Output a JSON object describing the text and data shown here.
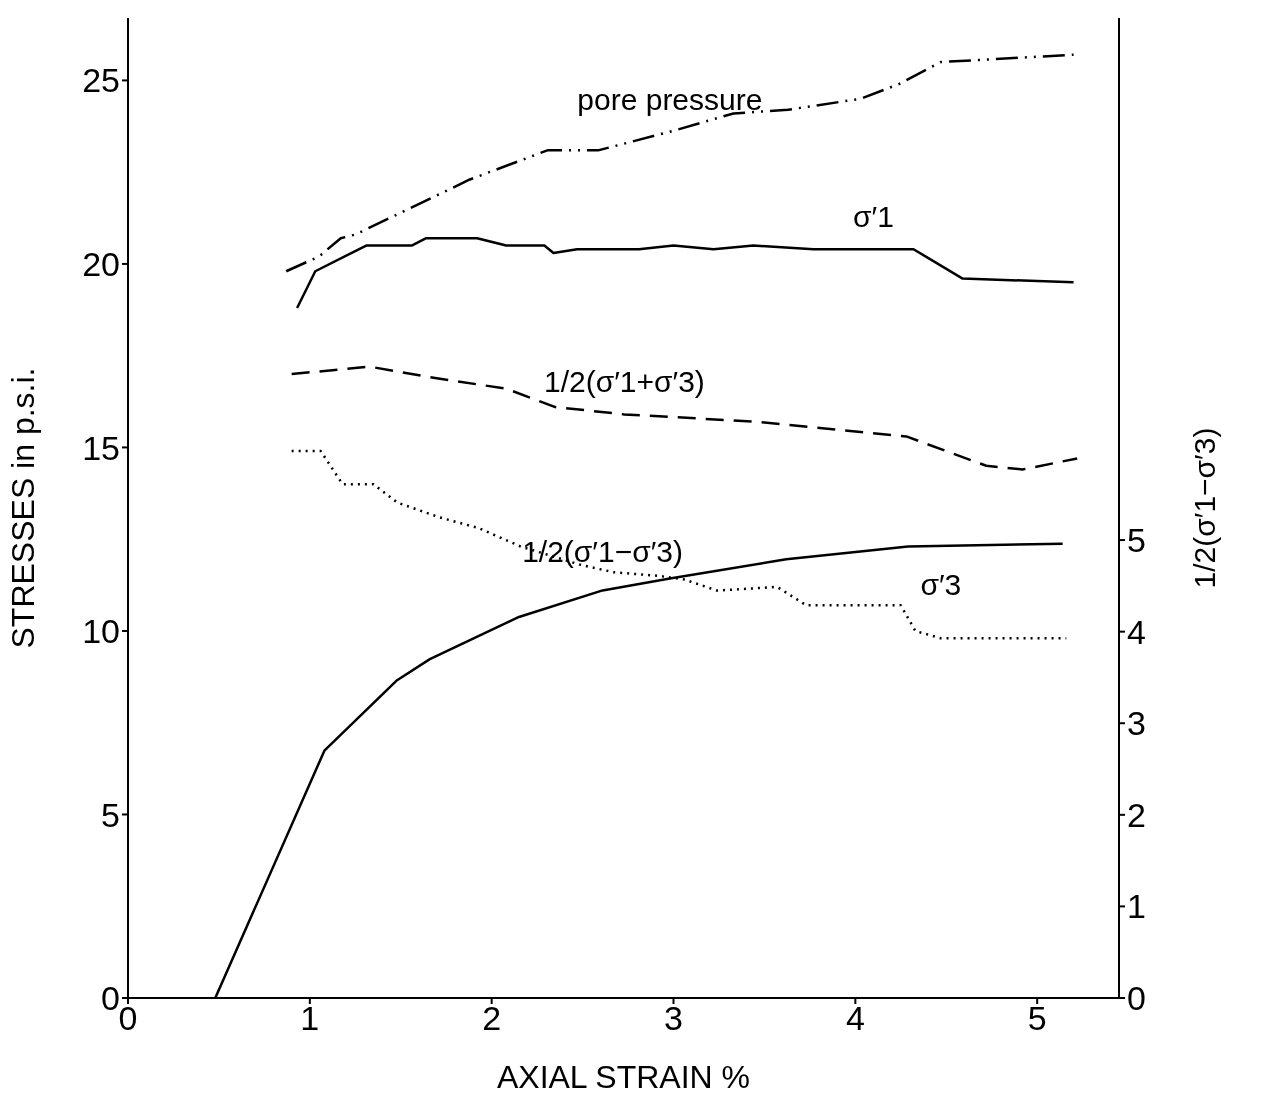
{
  "chart_data": {
    "type": "line",
    "xlabel": "AXIAL STRAIN %",
    "ylabel": "STRESSES in p.s.i.",
    "y2label": "1/2(σ′1−σ′3)",
    "xlim": [
      0,
      5.45
    ],
    "xticks": [
      0,
      1,
      2,
      3,
      4,
      5
    ],
    "ylim": [
      0,
      26.7
    ],
    "yticks": [
      0,
      5,
      10,
      15,
      20,
      25
    ],
    "y2lim": [
      0,
      10.7
    ],
    "y2ticks": [
      0,
      1,
      2,
      3,
      4,
      5
    ],
    "series": [
      {
        "name": "pore pressure",
        "color": "#000000",
        "line_style": "dashdot",
        "x": [
          0.87,
          1.05,
          1.17,
          1.25,
          1.88,
          2.31,
          2.59,
          2.98,
          3.33,
          3.63,
          4.03,
          4.24,
          4.47,
          5.2
        ],
        "values": [
          19.8,
          20.2,
          20.7,
          20.8,
          22.3,
          23.1,
          23.1,
          23.6,
          24.1,
          24.2,
          24.5,
          24.9,
          25.5,
          25.7
        ]
      },
      {
        "name": "σ′1",
        "color": "#000000",
        "line_style": "solid",
        "x": [
          0.93,
          1.03,
          1.31,
          1.56,
          1.64,
          1.92,
          2.08,
          2.29,
          2.34,
          2.47,
          2.81,
          3.0,
          3.22,
          3.44,
          3.77,
          4.32,
          4.59,
          5.2
        ],
        "values": [
          18.8,
          19.8,
          20.5,
          20.5,
          20.7,
          20.7,
          20.5,
          20.5,
          20.3,
          20.4,
          20.4,
          20.5,
          20.4,
          20.5,
          20.4,
          20.4,
          19.6,
          19.5
        ]
      },
      {
        "name": "1/2(σ′1+σ′3)",
        "color": "#000000",
        "line_style": "dashed",
        "x": [
          0.9,
          1.33,
          1.68,
          2.08,
          2.35,
          2.73,
          3.46,
          4.28,
          4.72,
          4.92,
          5.22
        ],
        "values": [
          17.0,
          17.2,
          16.9,
          16.6,
          16.1,
          15.9,
          15.7,
          15.3,
          14.5,
          14.4,
          14.7
        ]
      },
      {
        "name": "σ′3",
        "color": "#000000",
        "line_style": "dotted",
        "x": [
          0.9,
          1.06,
          1.18,
          1.35,
          1.48,
          1.71,
          1.93,
          2.16,
          2.49,
          2.67,
          2.92,
          3.06,
          3.24,
          3.57,
          3.73,
          4.25,
          4.33,
          4.47,
          5.16
        ],
        "values": [
          14.9,
          14.9,
          14.0,
          14.0,
          13.5,
          13.1,
          12.8,
          12.3,
          11.8,
          11.6,
          11.5,
          11.4,
          11.1,
          11.2,
          10.7,
          10.7,
          10.0,
          9.8,
          9.8
        ]
      },
      {
        "name": "1/2(σ′1−σ′3)",
        "color": "#000000",
        "line_style": "solid",
        "axis": "y2",
        "x": [
          0.48,
          1.08,
          1.48,
          1.66,
          2.15,
          2.61,
          2.98,
          3.62,
          4.29,
          5.14
        ],
        "values": [
          0,
          2.7,
          3.47,
          3.7,
          4.16,
          4.45,
          4.58,
          4.79,
          4.93,
          4.96
        ]
      }
    ]
  }
}
